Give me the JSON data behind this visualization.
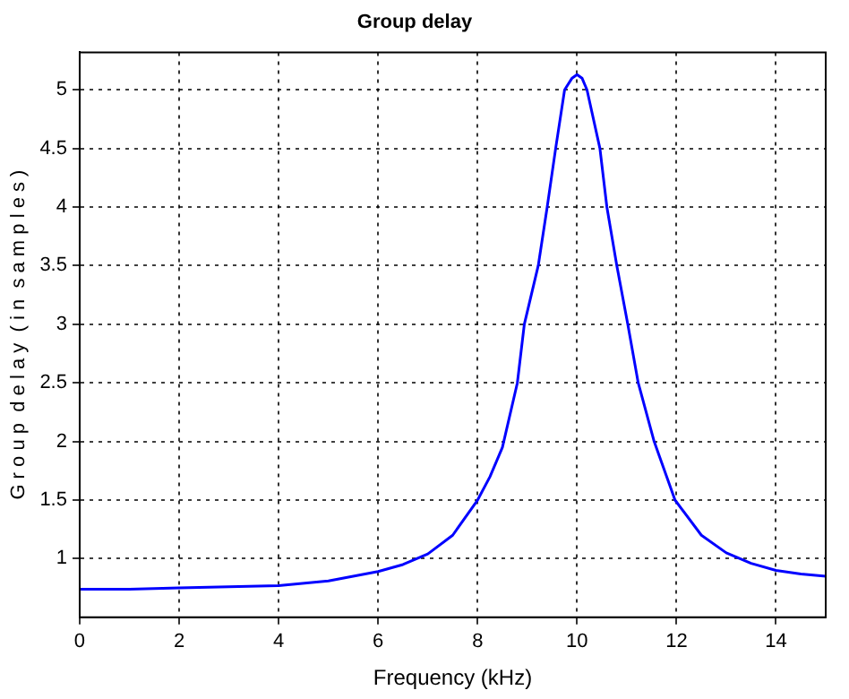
{
  "chart_data": {
    "type": "line",
    "title": "Group delay",
    "xlabel": "Frequency (kHz)",
    "ylabel": "G r o u p  d e l a y  ( i n  s a m p l e s )",
    "series": [
      {
        "color": "#0000ff",
        "x": [
          0,
          1,
          2,
          3,
          4,
          5,
          6,
          6.5,
          7,
          7.5,
          8,
          8.25,
          8.5,
          8.8,
          8.94,
          9.22,
          9.4,
          9.57,
          9.75,
          9.9,
          10,
          10.1,
          10.2,
          10.46,
          10.6,
          10.8,
          11.02,
          11.23,
          11.55,
          11.97,
          12.5,
          13,
          13.5,
          14,
          14.5,
          15
        ],
        "values": [
          0.74,
          0.74,
          0.75,
          0.76,
          0.77,
          0.81,
          0.89,
          0.95,
          1.04,
          1.2,
          1.5,
          1.7,
          1.95,
          2.5,
          3.0,
          3.5,
          4.0,
          4.5,
          5.0,
          5.1,
          5.13,
          5.1,
          5.0,
          4.5,
          4.0,
          3.5,
          3.0,
          2.5,
          2.0,
          1.5,
          1.2,
          1.05,
          0.96,
          0.9,
          0.87,
          0.85
        ]
      }
    ],
    "xlim": [
      0,
      15
    ],
    "xticks": [
      0,
      2,
      4,
      6,
      8,
      10,
      12,
      14
    ],
    "ylim": [
      0.5,
      5.32
    ],
    "yticks": [
      1,
      1.5,
      2,
      2.5,
      3,
      3.5,
      4,
      4.5,
      5
    ],
    "grid": true,
    "legend": false,
    "marker": "none",
    "line_style": "solid"
  }
}
